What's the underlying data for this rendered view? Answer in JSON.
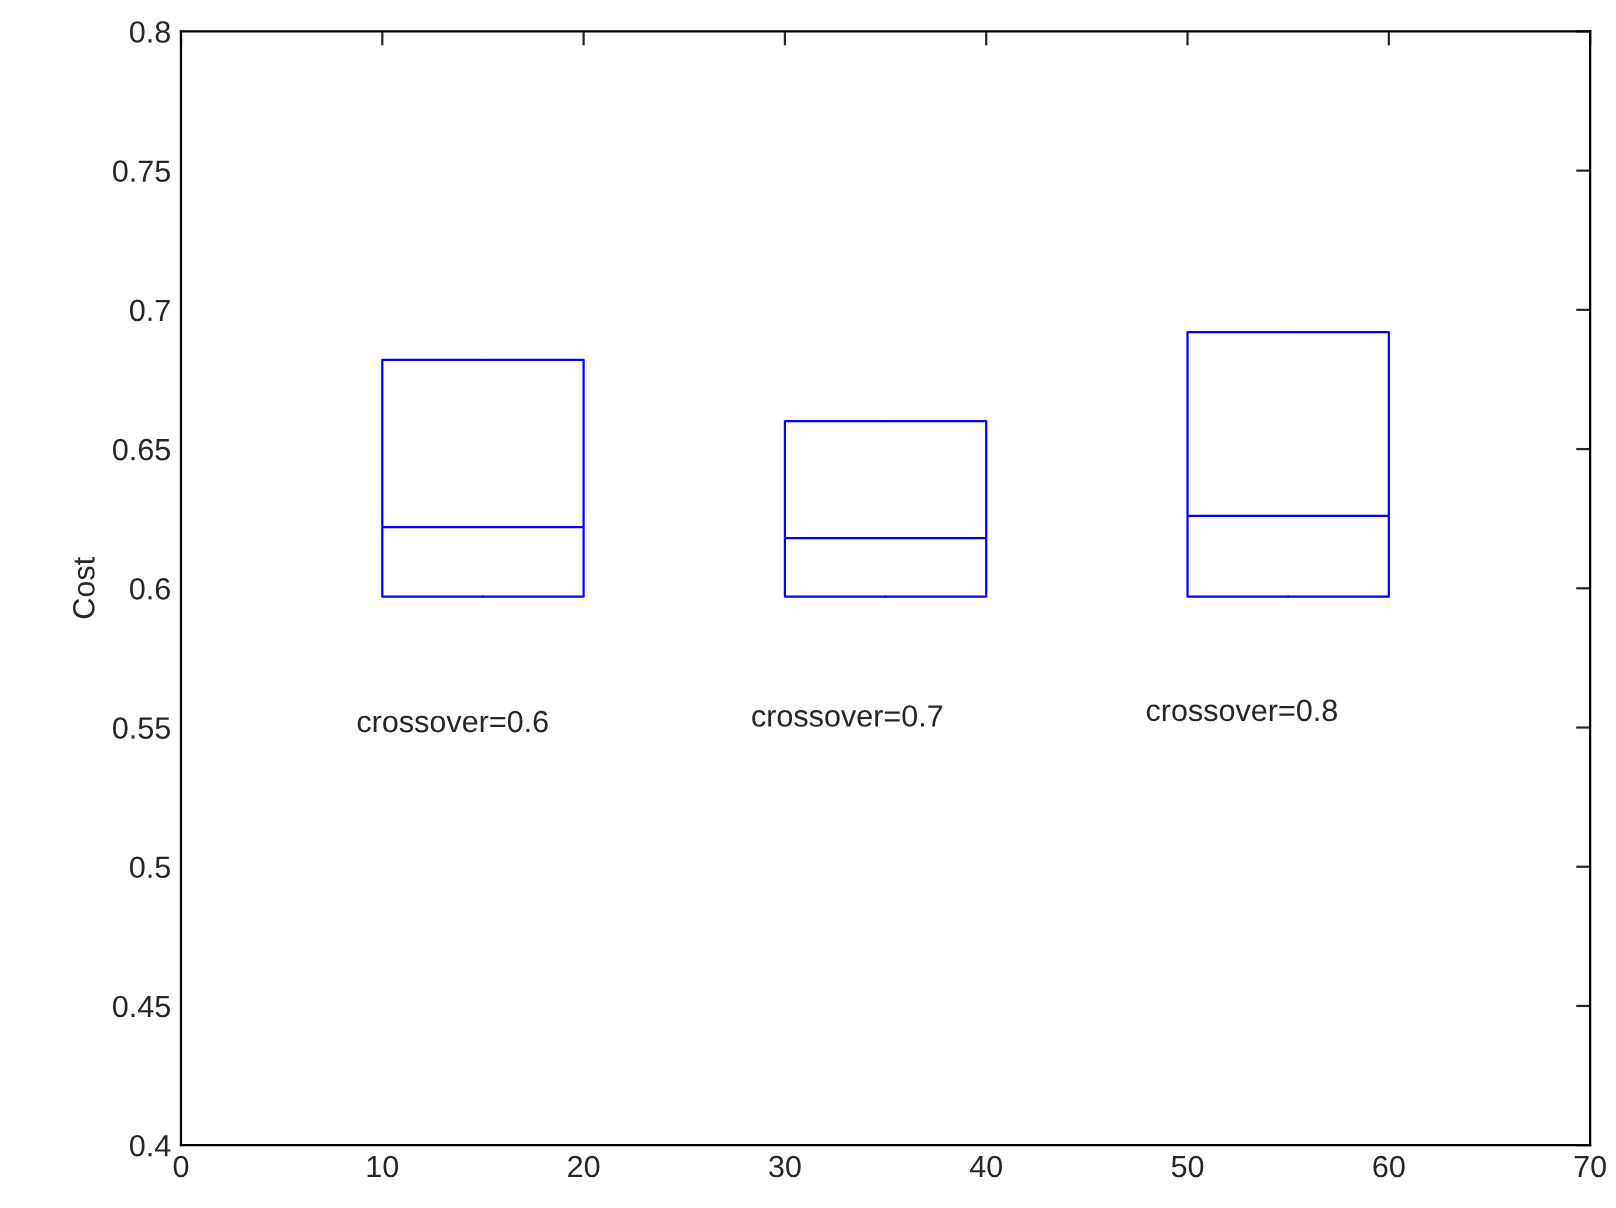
{
  "chart_data": {
    "type": "box",
    "ylabel": "Cost",
    "x": [
      15,
      35,
      55
    ],
    "boxes": [
      {
        "low": 0.597,
        "q1": 0.597,
        "median": 0.622,
        "q3": 0.682,
        "high": 0.682
      },
      {
        "low": 0.597,
        "q1": 0.597,
        "median": 0.618,
        "q3": 0.66,
        "high": 0.66
      },
      {
        "low": 0.597,
        "q1": 0.597,
        "median": 0.626,
        "q3": 0.692,
        "high": 0.692
      }
    ],
    "color": "#0000ff",
    "annotations": [
      "crossover=0.6",
      "crossover=0.7",
      "crossover=0.8"
    ],
    "xlim": [
      0,
      70
    ],
    "xticks": [
      0,
      10,
      20,
      30,
      40,
      50,
      60,
      70
    ],
    "ylim": [
      0.4,
      0.8
    ],
    "yticks": [
      0.4,
      0.45,
      0.5,
      0.55,
      0.6,
      0.65,
      0.7,
      0.75,
      0.8
    ],
    "grid": false
  }
}
